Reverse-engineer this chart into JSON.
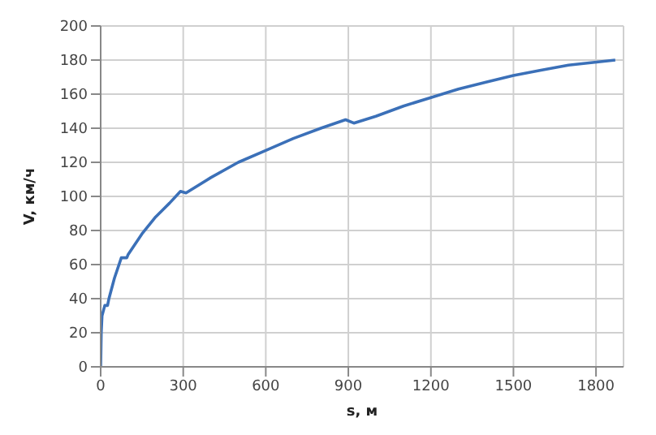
{
  "chart_data": {
    "type": "line",
    "xlabel": "s, м",
    "ylabel": "V, км/ч",
    "series": [
      {
        "color": "#3b70b8",
        "x": [
          0,
          2,
          5,
          15,
          25,
          30,
          50,
          75,
          95,
          100,
          150,
          200,
          250,
          290,
          310,
          400,
          500,
          600,
          700,
          800,
          890,
          920,
          1000,
          1100,
          1200,
          1300,
          1400,
          1500,
          1600,
          1700,
          1870
        ],
        "values": [
          0,
          20,
          30,
          36,
          36,
          40,
          52,
          64,
          64,
          66,
          78,
          88,
          96,
          103,
          102,
          111,
          120,
          127,
          134,
          140,
          145,
          143,
          147,
          153,
          158,
          163,
          167,
          171,
          174,
          177,
          180
        ]
      }
    ],
    "xlim": [
      0,
      1900
    ],
    "xticks": [
      0,
      300,
      600,
      900,
      1200,
      1500,
      1800
    ],
    "ylim": [
      0,
      200
    ],
    "yticks": [
      0,
      20,
      40,
      60,
      80,
      100,
      120,
      140,
      160,
      180,
      200
    ],
    "grid": true,
    "legend": false,
    "marker": "none",
    "line_style": "solid"
  }
}
